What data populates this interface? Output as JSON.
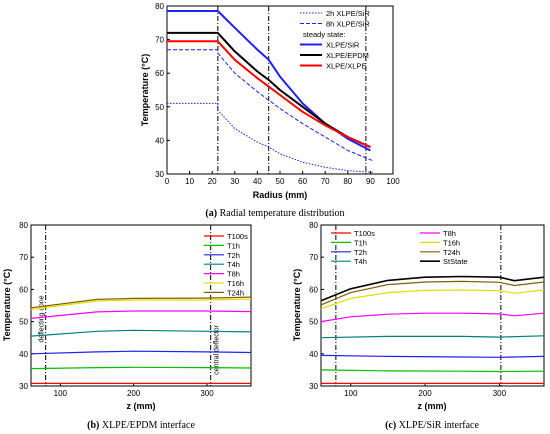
{
  "chart_data": [
    {
      "id": "a",
      "type": "line",
      "caption_letter": "(a)",
      "caption_text": " Radial temperature distribution",
      "xlabel": "Radius (mm)",
      "ylabel": "Temperature (°C)",
      "xlim": [
        0,
        100
      ],
      "ylim": [
        30,
        80
      ],
      "xticks": [
        0,
        10,
        20,
        30,
        40,
        50,
        60,
        70,
        80,
        90,
        100
      ],
      "yticks": [
        30,
        40,
        50,
        60,
        70,
        80
      ],
      "vlines": [
        22.5,
        45,
        88
      ],
      "legend_position": "top-right",
      "legend_subheader": "steady state:",
      "series": [
        {
          "name": "2h XLPE/SiR",
          "color": "#1f1fff",
          "style": "dotted",
          "width": 1,
          "x": [
            0,
            22.5,
            22.5,
            30,
            40,
            45,
            50,
            60,
            70,
            80,
            91
          ],
          "y": [
            51,
            51,
            49,
            43.5,
            39.5,
            38,
            36,
            33.5,
            32,
            31,
            30.5
          ]
        },
        {
          "name": "8h XLPE/SiR",
          "color": "#1f1fff",
          "style": "dashed",
          "width": 1,
          "x": [
            0,
            22.5,
            22.5,
            30,
            40,
            45,
            50,
            60,
            70,
            80,
            91
          ],
          "y": [
            67,
            67,
            66,
            60,
            54.5,
            52,
            49.5,
            45,
            41,
            37,
            34
          ]
        },
        {
          "name": "XLPE/SiR",
          "color": "#1f1fff",
          "style": "solid",
          "width": 2,
          "x": [
            0,
            22.5,
            30,
            40,
            45,
            50,
            60,
            70,
            80,
            90
          ],
          "y": [
            78.5,
            78.5,
            73.5,
            67,
            64,
            59,
            51,
            45,
            40.5,
            37
          ]
        },
        {
          "name": "XLPE/EPDM",
          "color": "#000000",
          "style": "solid",
          "width": 2,
          "x": [
            0,
            22.5,
            30,
            40,
            45,
            50,
            60,
            70,
            80,
            90
          ],
          "y": [
            72,
            72,
            66.5,
            60.5,
            58,
            55,
            50,
            45,
            41,
            38
          ]
        },
        {
          "name": "XLPE/XLPE",
          "color": "#ff0000",
          "style": "solid",
          "width": 2,
          "x": [
            0,
            22.5,
            30,
            40,
            45,
            50,
            60,
            70,
            80,
            90
          ],
          "y": [
            69.5,
            69.5,
            64,
            58.5,
            56,
            53.5,
            48.5,
            44.5,
            41,
            38
          ]
        }
      ]
    },
    {
      "id": "b",
      "type": "line",
      "caption_letter": "(b)",
      "caption_text": " XLPE/EPDM interface",
      "xlabel": "z (mm)",
      "ylabel": "Temperature (°C)",
      "xlim": [
        60,
        360
      ],
      "ylim": [
        30,
        80
      ],
      "xticks": [
        100,
        200,
        300
      ],
      "yticks": [
        30,
        40,
        50,
        60,
        70,
        80
      ],
      "vlines": [
        80,
        305
      ],
      "vline_labels": [
        "deflecting cone",
        "central deflector"
      ],
      "legend_position": "top-right",
      "series": [
        {
          "name": "T100s",
          "color": "#ff0000",
          "style": "solid",
          "width": 1.2,
          "x": [
            60,
            360
          ],
          "y": [
            30.8,
            30.8
          ]
        },
        {
          "name": "T1h",
          "color": "#00c000",
          "style": "solid",
          "width": 1.2,
          "x": [
            60,
            150,
            200,
            300,
            360
          ],
          "y": [
            35.4,
            35.7,
            35.8,
            35.7,
            35.6
          ]
        },
        {
          "name": "T2h",
          "color": "#2020ff",
          "style": "solid",
          "width": 1.2,
          "x": [
            60,
            150,
            200,
            300,
            360
          ],
          "y": [
            40.0,
            40.6,
            40.8,
            40.6,
            40.4
          ]
        },
        {
          "name": "T4h",
          "color": "#008080",
          "style": "solid",
          "width": 1.2,
          "x": [
            60,
            150,
            200,
            300,
            360
          ],
          "y": [
            45.5,
            47.0,
            47.3,
            47.0,
            46.8
          ]
        },
        {
          "name": "T8h",
          "color": "#ff00ff",
          "style": "solid",
          "width": 1.2,
          "x": [
            60,
            150,
            200,
            300,
            360
          ],
          "y": [
            51.0,
            53.0,
            53.3,
            53.3,
            53.1
          ]
        },
        {
          "name": "T16h",
          "color": "#e0e000",
          "style": "solid",
          "width": 1.2,
          "x": [
            60,
            150,
            200,
            300,
            360
          ],
          "y": [
            53.8,
            56.4,
            56.7,
            56.7,
            57.0
          ]
        },
        {
          "name": "T24h",
          "color": "#806000",
          "style": "solid",
          "width": 1.2,
          "x": [
            60,
            150,
            200,
            300,
            360
          ],
          "y": [
            54.3,
            56.9,
            57.2,
            57.3,
            57.6
          ]
        }
      ]
    },
    {
      "id": "c",
      "type": "line",
      "caption_letter": "(c)",
      "caption_text": " XLPE/SiR interface",
      "xlabel": "z (mm)",
      "ylabel": "Temperature (°C)",
      "xlim": [
        60,
        360
      ],
      "ylim": [
        30,
        80
      ],
      "xticks": [
        100,
        200,
        300
      ],
      "yticks": [
        30,
        40,
        50,
        60,
        70,
        80
      ],
      "vlines": [
        80,
        302
      ],
      "legend_position": "top-left",
      "series": [
        {
          "name": "T100s",
          "color": "#ff0000",
          "style": "solid",
          "width": 1.2,
          "x": [
            60,
            360
          ],
          "y": [
            30.8,
            30.8
          ]
        },
        {
          "name": "T1h",
          "color": "#00c000",
          "style": "solid",
          "width": 1.2,
          "x": [
            60,
            150,
            250,
            300,
            360
          ],
          "y": [
            35.0,
            34.7,
            34.6,
            34.5,
            34.6
          ]
        },
        {
          "name": "T2h",
          "color": "#2020ff",
          "style": "solid",
          "width": 1.2,
          "x": [
            60,
            150,
            250,
            300,
            360
          ],
          "y": [
            39.5,
            39.2,
            39.0,
            38.9,
            39.2
          ]
        },
        {
          "name": "T4h",
          "color": "#008080",
          "style": "solid",
          "width": 1.2,
          "x": [
            60,
            150,
            250,
            300,
            360
          ],
          "y": [
            45.0,
            45.4,
            45.4,
            45.2,
            45.6
          ]
        },
        {
          "name": "T8h",
          "color": "#ff00ff",
          "style": "solid",
          "width": 1.2,
          "x": [
            60,
            100,
            150,
            200,
            250,
            300,
            320,
            360
          ],
          "y": [
            50.0,
            51.5,
            52.3,
            52.6,
            52.6,
            52.4,
            51.8,
            52.6
          ]
        },
        {
          "name": "T16h",
          "color": "#e0e000",
          "style": "solid",
          "width": 1.2,
          "x": [
            60,
            100,
            150,
            200,
            250,
            300,
            320,
            360
          ],
          "y": [
            54.0,
            57.2,
            59.0,
            59.7,
            59.8,
            59.6,
            58.8,
            59.8
          ]
        },
        {
          "name": "T24h",
          "color": "#806000",
          "style": "solid",
          "width": 1.2,
          "x": [
            60,
            100,
            150,
            200,
            250,
            300,
            320,
            360
          ],
          "y": [
            55.2,
            59.0,
            61.5,
            62.3,
            62.5,
            62.2,
            61.2,
            62.3
          ]
        },
        {
          "name": "StState",
          "color": "#000000",
          "style": "solid",
          "width": 1.6,
          "x": [
            60,
            100,
            150,
            200,
            250,
            300,
            320,
            360
          ],
          "y": [
            56.5,
            60.2,
            62.8,
            63.8,
            64.0,
            63.8,
            62.7,
            63.8
          ]
        }
      ]
    }
  ]
}
